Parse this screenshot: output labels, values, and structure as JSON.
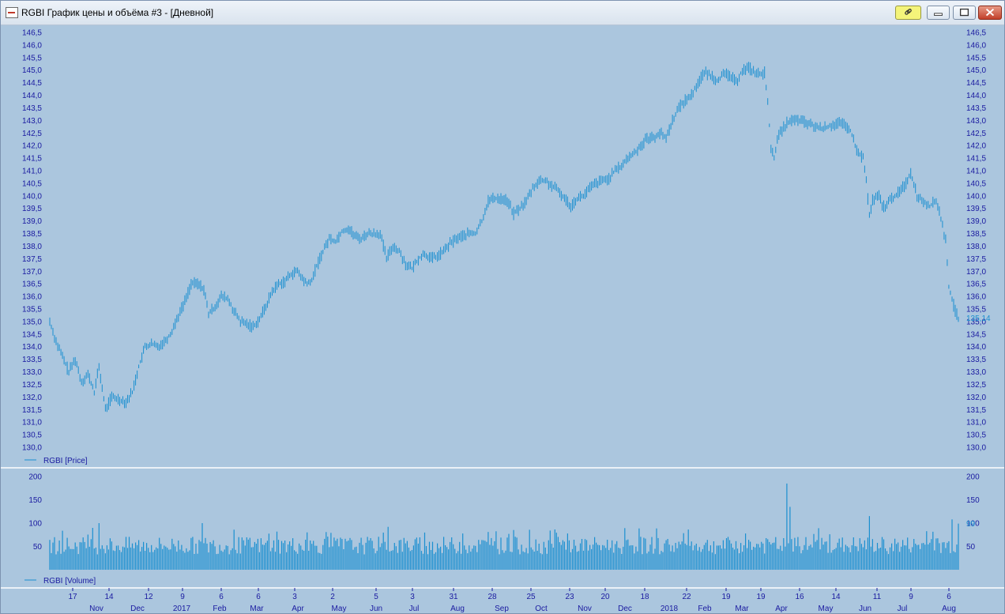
{
  "window": {
    "title": "RGBI График цены и объёма #3 - [Дневной]",
    "buttons": {
      "link": "link-icon",
      "minimize": "minimize-icon",
      "maximize": "maximize-icon",
      "close": "close-icon"
    }
  },
  "colors": {
    "background": "#abc6de",
    "series": "#1a8fd0",
    "axis_text": "#1a1aa0",
    "divider": "#ffffff"
  },
  "legend": {
    "price": "RGBI [Price]",
    "volume": "RGBI [Volume]"
  },
  "last_values": {
    "price": "135,14",
    "volume": "99"
  },
  "chart_data": [
    {
      "type": "line",
      "title": "",
      "series": [
        {
          "name": "RGBI [Price]",
          "x_unit": "trading day index (0 = mid Oct 2016)",
          "anchors": [
            [
              0,
              135.0
            ],
            [
              4,
              134.2
            ],
            [
              8,
              133.6
            ],
            [
              12,
              133.0
            ],
            [
              16,
              133.5
            ],
            [
              20,
              132.6
            ],
            [
              24,
              132.9
            ],
            [
              28,
              132.2
            ],
            [
              31,
              133.2
            ],
            [
              35,
              131.5
            ],
            [
              39,
              132.0
            ],
            [
              44,
              131.9
            ],
            [
              48,
              131.8
            ],
            [
              52,
              132.2
            ],
            [
              56,
              133.2
            ],
            [
              60,
              134.0
            ],
            [
              64,
              134.1
            ],
            [
              68,
              134.0
            ],
            [
              72,
              134.2
            ],
            [
              76,
              134.5
            ],
            [
              80,
              135.1
            ],
            [
              85,
              135.8
            ],
            [
              89,
              136.5
            ],
            [
              93,
              136.5
            ],
            [
              97,
              136.3
            ],
            [
              100,
              135.3
            ],
            [
              104,
              135.6
            ],
            [
              108,
              136.0
            ],
            [
              112,
              135.9
            ],
            [
              116,
              135.4
            ],
            [
              120,
              135.0
            ],
            [
              124,
              134.9
            ],
            [
              128,
              134.8
            ],
            [
              132,
              135.1
            ],
            [
              136,
              135.6
            ],
            [
              140,
              136.2
            ],
            [
              144,
              136.5
            ],
            [
              148,
              136.6
            ],
            [
              152,
              136.9
            ],
            [
              156,
              137.0
            ],
            [
              160,
              136.6
            ],
            [
              164,
              136.5
            ],
            [
              168,
              137.2
            ],
            [
              172,
              137.8
            ],
            [
              176,
              138.3
            ],
            [
              180,
              138.2
            ],
            [
              184,
              138.6
            ],
            [
              188,
              138.7
            ],
            [
              192,
              138.4
            ],
            [
              196,
              138.3
            ],
            [
              200,
              138.5
            ],
            [
              204,
              138.5
            ],
            [
              208,
              138.5
            ],
            [
              212,
              137.5
            ],
            [
              216,
              138.0
            ],
            [
              220,
              137.8
            ],
            [
              224,
              137.3
            ],
            [
              228,
              137.1
            ],
            [
              232,
              137.5
            ],
            [
              236,
              137.7
            ],
            [
              240,
              137.5
            ],
            [
              244,
              137.6
            ],
            [
              248,
              137.8
            ],
            [
              252,
              138.1
            ],
            [
              256,
              138.3
            ],
            [
              260,
              138.4
            ],
            [
              264,
              138.5
            ],
            [
              268,
              138.5
            ],
            [
              272,
              139.0
            ],
            [
              276,
              139.8
            ],
            [
              280,
              139.9
            ],
            [
              284,
              139.9
            ],
            [
              288,
              139.8
            ],
            [
              292,
              139.3
            ],
            [
              296,
              139.5
            ],
            [
              300,
              139.8
            ],
            [
              304,
              140.3
            ],
            [
              308,
              140.6
            ],
            [
              312,
              140.6
            ],
            [
              316,
              140.4
            ],
            [
              320,
              140.2
            ],
            [
              324,
              139.9
            ],
            [
              328,
              139.6
            ],
            [
              332,
              139.9
            ],
            [
              336,
              140.0
            ],
            [
              340,
              140.3
            ],
            [
              344,
              140.5
            ],
            [
              348,
              140.6
            ],
            [
              352,
              140.7
            ],
            [
              356,
              141.0
            ],
            [
              360,
              141.2
            ],
            [
              364,
              141.5
            ],
            [
              368,
              141.7
            ],
            [
              372,
              142.0
            ],
            [
              376,
              142.3
            ],
            [
              380,
              142.3
            ],
            [
              384,
              142.5
            ],
            [
              388,
              142.3
            ],
            [
              392,
              143.0
            ],
            [
              396,
              143.5
            ],
            [
              400,
              143.8
            ],
            [
              404,
              144.0
            ],
            [
              408,
              144.5
            ],
            [
              412,
              144.9
            ],
            [
              416,
              144.8
            ],
            [
              420,
              144.6
            ],
            [
              424,
              144.8
            ],
            [
              428,
              144.8
            ],
            [
              432,
              144.5
            ],
            [
              436,
              145.0
            ],
            [
              440,
              145.1
            ],
            [
              444,
              144.9
            ],
            [
              448,
              144.8
            ],
            [
              450,
              144.9
            ],
            [
              452,
              143.8
            ],
            [
              454,
              141.8
            ],
            [
              456,
              141.5
            ],
            [
              458,
              142.3
            ],
            [
              460,
              142.5
            ],
            [
              464,
              142.9
            ],
            [
              468,
              143.0
            ],
            [
              472,
              143.0
            ],
            [
              476,
              142.9
            ],
            [
              480,
              142.8
            ],
            [
              484,
              142.7
            ],
            [
              488,
              142.7
            ],
            [
              492,
              142.8
            ],
            [
              496,
              142.9
            ],
            [
              500,
              142.8
            ],
            [
              504,
              142.6
            ],
            [
              508,
              141.8
            ],
            [
              512,
              141.5
            ],
            [
              514,
              140.6
            ],
            [
              516,
              139.2
            ],
            [
              518,
              139.8
            ],
            [
              522,
              140.0
            ],
            [
              524,
              139.6
            ],
            [
              526,
              139.6
            ],
            [
              530,
              139.9
            ],
            [
              534,
              140.1
            ],
            [
              538,
              140.4
            ],
            [
              542,
              140.9
            ],
            [
              544,
              140.5
            ],
            [
              546,
              140.0
            ],
            [
              550,
              139.8
            ],
            [
              554,
              139.6
            ],
            [
              558,
              139.8
            ],
            [
              560,
              139.4
            ],
            [
              562,
              138.8
            ],
            [
              564,
              138.2
            ],
            [
              566,
              136.4
            ],
            [
              568,
              135.9
            ],
            [
              570,
              135.4
            ],
            [
              572,
              135.14
            ]
          ]
        }
      ],
      "x_ticks": [
        "17",
        "14",
        "12",
        "9",
        "6",
        "6",
        "3",
        "2",
        "5",
        "3",
        "31",
        "28",
        "25",
        "23",
        "20",
        "18",
        "22",
        "19",
        "19",
        "16",
        "14",
        "11",
        "9",
        "6"
      ],
      "x_months": [
        "Nov",
        "Dec",
        "2017",
        "Feb",
        "Mar",
        "Apr",
        "May",
        "Jun",
        "Jul",
        "Aug",
        "Sep",
        "Oct",
        "Nov",
        "Dec",
        "2018",
        "Feb",
        "Mar",
        "Apr",
        "May",
        "Jun",
        "Jul",
        "Aug"
      ],
      "y_ticks": [
        "146,5",
        "146,0",
        "145,5",
        "145,0",
        "144,5",
        "144,0",
        "143,5",
        "143,0",
        "142,5",
        "142,0",
        "141,5",
        "141,0",
        "140,5",
        "140,0",
        "139,5",
        "139,0",
        "138,5",
        "138,0",
        "137,5",
        "137,0",
        "136,5",
        "136,0",
        "135,5",
        "135,0",
        "134,5",
        "134,0",
        "133,5",
        "133,0",
        "132,5",
        "132,0",
        "131,5",
        "131,0",
        "130,5",
        "130,0"
      ],
      "ylim": [
        130.0,
        146.5
      ],
      "grid": false,
      "legend_position": "bottom-left"
    },
    {
      "type": "bar",
      "title": "",
      "series": [
        {
          "name": "RGBI [Volume]",
          "typical_value": 55,
          "peaks": [
            [
              31,
              100
            ],
            [
              96,
              100
            ],
            [
              213,
              92
            ],
            [
              464,
              185
            ],
            [
              466,
              135
            ],
            [
              516,
              115
            ],
            [
              568,
              108
            ],
            [
              572,
              99
            ]
          ]
        }
      ],
      "y_ticks": [
        "200",
        "150",
        "100",
        "50"
      ],
      "ylim": [
        0,
        200
      ],
      "grid": false,
      "legend_position": "bottom-left"
    }
  ]
}
